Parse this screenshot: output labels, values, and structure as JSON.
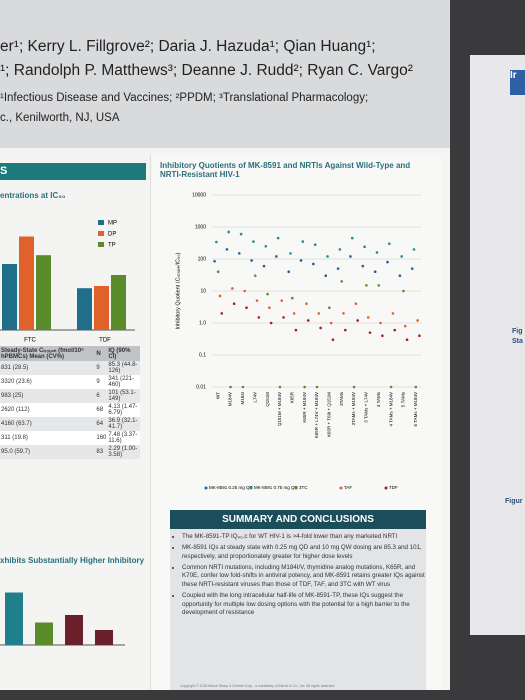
{
  "header": {
    "lines": [
      "er¹; Kerry L. Fillgrove²; Daria J. Hazuda¹; Qian Huang¹;",
      "¹; Randolph P. Matthews³; Deanne J. Rudd²; Ryan C. Vargo²",
      "¹Infectious Disease and Vaccines; ²PPDM; ³Translational Pharmacology;",
      "c., Kenilworth, NJ, USA"
    ]
  },
  "left": {
    "section_tag": "S",
    "chart_title": "entrations at IC₅₀",
    "bars": {
      "type": "bar",
      "categories": [
        "FTC",
        "TDF"
      ],
      "series": [
        {
          "name": "MP",
          "color": "#1f6f8b",
          "values": [
            60,
            38
          ]
        },
        {
          "name": "DP",
          "color": "#e0622a",
          "values": [
            85,
            40
          ]
        },
        {
          "name": "TP",
          "color": "#5a8c2c",
          "values": [
            68,
            50
          ]
        }
      ]
    },
    "table": {
      "header": [
        "Steady-State Cₜᵣₒᵤ₉ₕ (fmol/10⁶ hPBMCs) Mean (CV%)",
        "N",
        "IQ (90% CI)"
      ],
      "rows": [
        [
          "831 (28.5)",
          "9",
          "85.3 (44.8-126)"
        ],
        [
          "3320 (23.6)",
          "9",
          "341 (221-460)"
        ],
        [
          "983 (25)",
          "6",
          "101 (53.1-149)"
        ],
        [
          "2620 (112)",
          "68",
          "4.13 (1.47-6.79)"
        ],
        [
          "4160 (63.7)",
          "64",
          "36.9 (32.1-41.7)"
        ],
        [
          "311 (19.8)",
          "160",
          "7.48 (3.37-11.6)"
        ],
        [
          "95.0 (59.7)",
          "83",
          "2.29 (1.00-3.58)"
        ]
      ]
    },
    "bottom_heading": "xhibits Substantially Higher Inhibitory",
    "bottom_bars": {
      "type": "bar",
      "categories": [
        null,
        null,
        null,
        null
      ],
      "colors": [
        "#1f7f8b",
        "#5a8c2c",
        "#6b1f2a",
        "#6b1f2a"
      ],
      "values": [
        35,
        15,
        20,
        10
      ]
    }
  },
  "chart_data": {
    "type": "scatter",
    "title": "Inhibitory Quotients of MK-8591 and NRTIs Against Wild-Type and NRTI-Resistant HIV-1",
    "y_label": "Inhibitory Quotient (Cₜᵣₒᵤ₉ₕ/IC₅₀)",
    "log_scale": true,
    "grid": true,
    "ylim": [
      0.01,
      10000
    ],
    "yticks": [
      0.01,
      0.1,
      {
        "value": 1,
        "label": "1.0"
      },
      10,
      100,
      1000,
      10000
    ],
    "categories": [
      "WT",
      "M184V",
      "M184I",
      "L74V",
      "Q151M",
      "Q151M + M184V",
      "K65R",
      "K65R + M184V",
      "K65R + L74V + M184V",
      "K65R + T69i + Q151M",
      "3TAMs",
      "3TAMs + M184V",
      "3 TAMs + L74V",
      "4 TAMs",
      "4 TAMs + M184V",
      "5 TAMs",
      "6 TAMs + M184V"
    ],
    "series": [
      {
        "name": "MK-8591 0.25 mg QD",
        "color": "#1f5f9b",
        "values": [
          85,
          200,
          150,
          90,
          60,
          120,
          40,
          90,
          70,
          30,
          50,
          120,
          60,
          40,
          80,
          30,
          50
        ]
      },
      {
        "name": "MK-8591 0.75 mg QD",
        "color": "#2a8a8a",
        "values": [
          340,
          700,
          600,
          350,
          250,
          450,
          150,
          350,
          280,
          120,
          200,
          450,
          240,
          160,
          300,
          120,
          200
        ]
      },
      {
        "name": "3TC",
        "color": "#5a8c2c",
        "values": [
          40,
          0.01,
          0.01,
          30,
          8,
          0.01,
          6,
          0.01,
          0.01,
          3,
          20,
          0.01,
          15,
          15,
          0.01,
          10,
          0.01
        ]
      },
      {
        "name": "TAF",
        "color": "#e0622a",
        "values": [
          7,
          12,
          10,
          5,
          3,
          5,
          2,
          4,
          2,
          1,
          2,
          4,
          1.5,
          1,
          2,
          0.8,
          1.2
        ]
      },
      {
        "name": "TDF",
        "color": "#a0202a",
        "values": [
          2,
          4,
          3,
          1.5,
          1,
          1.5,
          0.6,
          1.2,
          0.7,
          0.3,
          0.6,
          1.2,
          0.5,
          0.4,
          0.6,
          0.3,
          0.4
        ]
      }
    ]
  },
  "summary": {
    "title": "SUMMARY AND CONCLUSIONS",
    "bullets": [
      "The MK-8591-TP IQ₉₀,ᴄ for WT HIV-1 is >4-fold lower than any marketed NRTI",
      "MK-8591 IQs at steady state with 0.25 mg QD and 10 mg QW dosing are 85.3 and 101, respectively, and proportionately greater for higher dose levels",
      "Common NRTI mutations, including M184I/V, thymidine analog mutations, K65R, and K70E, confer low fold-shifts in antiviral potency, and MK-8591 retains greater IQs against these NRTI-resistant viruses than those of TDF, TAF, and 3TC with WT virus",
      "Coupled with the long intracellular half-life of MK-8591-TP, these IQs suggest the opportunity for multiple low dosing options with the potential for a high barrier to the development of resistance"
    ]
  },
  "footer": "Copyright © 2018 Merck Sharp & Dohme Corp., a subsidiary of Merck & Co., Inc. All rights reserved.",
  "right": {
    "texts": [
      "Ir",
      "Fig",
      "Sta",
      "Figur"
    ]
  }
}
